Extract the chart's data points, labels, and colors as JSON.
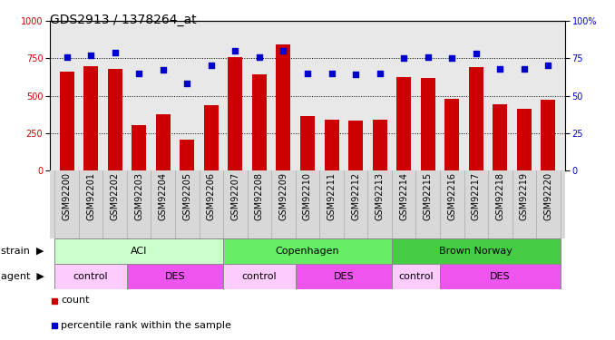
{
  "title": "GDS2913 / 1378264_at",
  "samples": [
    "GSM92200",
    "GSM92201",
    "GSM92202",
    "GSM92203",
    "GSM92204",
    "GSM92205",
    "GSM92206",
    "GSM92207",
    "GSM92208",
    "GSM92209",
    "GSM92210",
    "GSM92211",
    "GSM92212",
    "GSM92213",
    "GSM92214",
    "GSM92215",
    "GSM92216",
    "GSM92217",
    "GSM92218",
    "GSM92219",
    "GSM92220"
  ],
  "counts": [
    660,
    700,
    680,
    305,
    375,
    205,
    435,
    760,
    640,
    840,
    365,
    340,
    335,
    340,
    625,
    620,
    480,
    690,
    440,
    415,
    470
  ],
  "percentiles": [
    76,
    77,
    79,
    65,
    67,
    58,
    70,
    80,
    76,
    80,
    65,
    65,
    64,
    65,
    75,
    76,
    75,
    78,
    68,
    68,
    70
  ],
  "bar_color": "#cc0000",
  "dot_color": "#0000cc",
  "ylim_left": [
    0,
    1000
  ],
  "ylim_right": [
    0,
    100
  ],
  "yticks_left": [
    0,
    250,
    500,
    750,
    1000
  ],
  "yticks_right": [
    0,
    25,
    50,
    75,
    100
  ],
  "strain_groups": [
    {
      "label": "ACI",
      "start": 0,
      "end": 6,
      "color": "#ccffcc"
    },
    {
      "label": "Copenhagen",
      "start": 7,
      "end": 13,
      "color": "#66ee66"
    },
    {
      "label": "Brown Norway",
      "start": 14,
      "end": 20,
      "color": "#44cc44"
    }
  ],
  "agent_groups": [
    {
      "label": "control",
      "start": 0,
      "end": 2,
      "color": "#ffccff"
    },
    {
      "label": "DES",
      "start": 3,
      "end": 6,
      "color": "#ee55ee"
    },
    {
      "label": "control",
      "start": 7,
      "end": 9,
      "color": "#ffccff"
    },
    {
      "label": "DES",
      "start": 10,
      "end": 13,
      "color": "#ee55ee"
    },
    {
      "label": "control",
      "start": 14,
      "end": 15,
      "color": "#ffccff"
    },
    {
      "label": "DES",
      "start": 16,
      "end": 20,
      "color": "#ee55ee"
    }
  ],
  "bar_color_legend": "#cc0000",
  "dot_color_legend": "#0000cc",
  "bg_color": "#ffffff",
  "plot_bg_color": "#e8e8e8",
  "xtick_bg_color": "#d8d8d8",
  "grid_color": "#000000",
  "title_fontsize": 10,
  "tick_fontsize": 7,
  "annotation_fontsize": 8,
  "legend_fontsize": 8
}
